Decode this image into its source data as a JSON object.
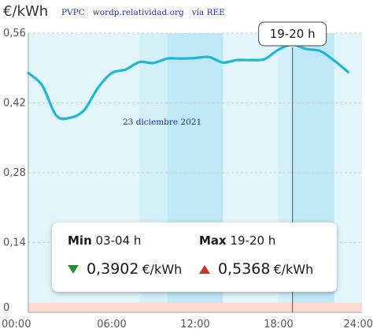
{
  "header": {
    "unit_label": "€/kWh",
    "source_text": "PVPC   wordp.relatividad.org   vía REE",
    "date_text": "23 diciembre 2021"
  },
  "tooltip": {
    "hour_label": "19-20 h"
  },
  "summary": {
    "min_label": "Min",
    "min_hour": "03-04 h",
    "min_value": "0,3902",
    "min_unit": "€/kWh",
    "max_label": "Max",
    "max_hour": "19-20 h",
    "max_value": "0,5368",
    "max_unit": "€/kWh"
  },
  "colors": {
    "line": "#20b7d6",
    "plot_bg": "#e2f5fb",
    "band": "#c9ecf8",
    "cheap_strip": "#fbdad2",
    "min_arrow": "#2e8b3e",
    "max_arrow": "#c0392b"
  },
  "chart_data": {
    "type": "line",
    "title": "",
    "xlabel": "",
    "ylabel": "€/kWh",
    "x_tick_labels": [
      "00:00",
      "06:00",
      "12:00",
      "18:00",
      "24:00"
    ],
    "y_tick_labels": [
      "0",
      "0,14",
      "0,28",
      "0,42",
      "0,56"
    ],
    "y_ticks": [
      0,
      0.14,
      0.28,
      0.42,
      0.56
    ],
    "xlim": [
      0,
      24
    ],
    "ylim": [
      0,
      0.56
    ],
    "grid": "horizontal dashed",
    "x": [
      0,
      1,
      2,
      3,
      4,
      5,
      6,
      7,
      8,
      9,
      10,
      11,
      12,
      13,
      14,
      15,
      16,
      17,
      18,
      19,
      20,
      21,
      22,
      23
    ],
    "series": [
      {
        "values": [
          0.48,
          0.455,
          0.395,
          0.3902,
          0.405,
          0.45,
          0.48,
          0.487,
          0.502,
          0.5,
          0.509,
          0.509,
          0.51,
          0.512,
          0.501,
          0.506,
          0.506,
          0.508,
          0.527,
          0.5368,
          0.528,
          0.524,
          0.505,
          0.482
        ]
      }
    ],
    "shaded_hour_bands": [
      {
        "start": 8,
        "end": 14,
        "shade": "medium"
      },
      {
        "start": 10,
        "end": 14,
        "shade": "dark"
      },
      {
        "start": 18,
        "end": 22,
        "shade": "medium"
      },
      {
        "start": 19,
        "end": 22,
        "shade": "dark"
      }
    ],
    "highlight_hour": 19
  }
}
